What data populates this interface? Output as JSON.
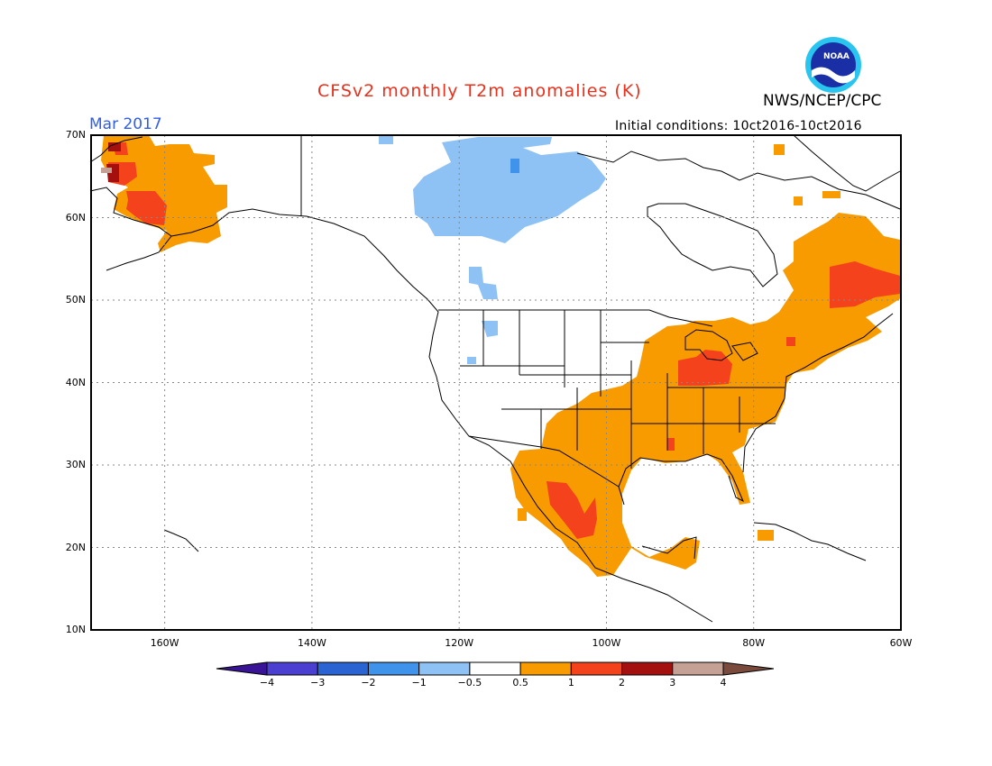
{
  "header": {
    "title": "CFSv2 monthly T2m anomalies (K)",
    "month": "Mar 2017",
    "agency": "NWS/NCEP/CPC",
    "initial_conditions": "Initial conditions: 10ct2016-10ct2016",
    "logo_text": "NOAA"
  },
  "axes": {
    "lat_labels": [
      "70N",
      "60N",
      "50N",
      "40N",
      "30N",
      "20N",
      "10N"
    ],
    "lon_labels": [
      "160W",
      "140W",
      "120W",
      "100W",
      "80W",
      "60W"
    ]
  },
  "colorbar": {
    "labels": [
      "−4",
      "−3",
      "−2",
      "−1",
      "−0.5",
      "0.5",
      "1",
      "2",
      "3",
      "4"
    ],
    "colors": [
      "#3a1496",
      "#4a3fd0",
      "#2a64d2",
      "#3f93ea",
      "#8ec2f5",
      "#ffffff",
      "#f79b00",
      "#f4421c",
      "#a3100e",
      "#c4a194",
      "#7a4a3c"
    ]
  },
  "colors": {
    "title": "#e8311c",
    "month": "#2f5de8",
    "grid": "#888888"
  }
}
